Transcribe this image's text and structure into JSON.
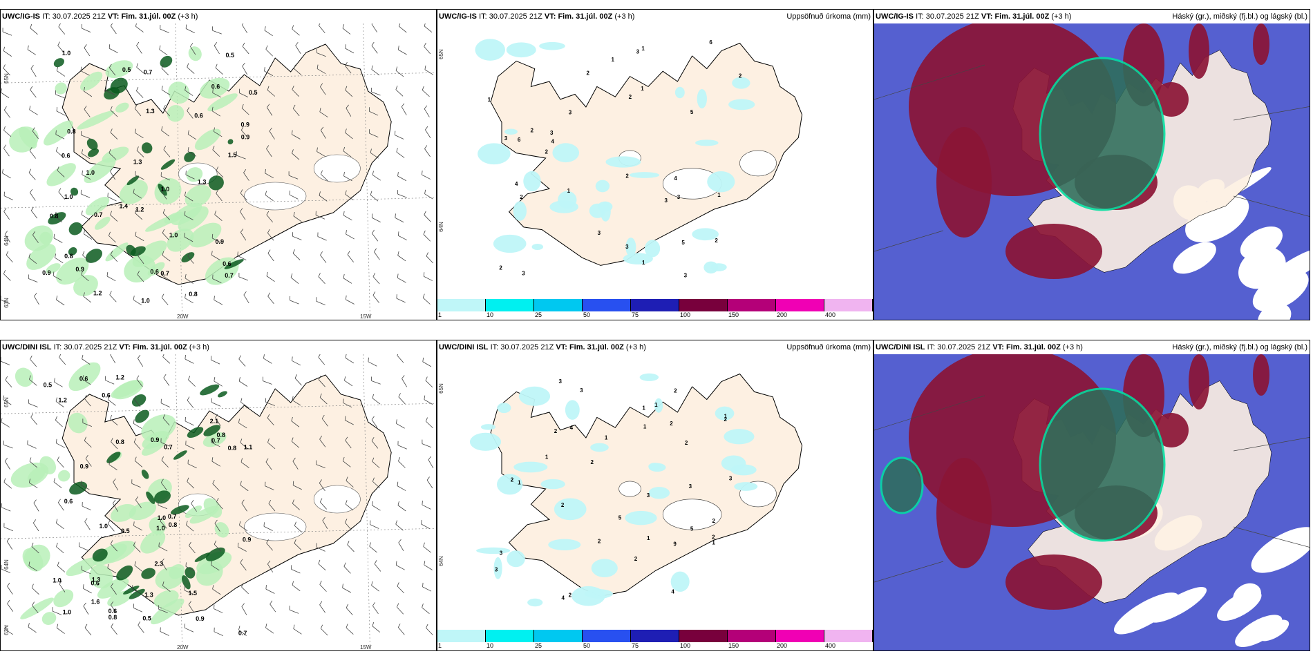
{
  "rows": [
    {
      "model": "UWC/IG-IS",
      "init_label": "IT:",
      "init_value": "30.07.2025 21Z",
      "valid_label": "VT:",
      "valid_value": "Fim. 31.júl. 00Z",
      "lead": "(+3 h)",
      "wind_panel": {
        "lon_labels": [
          "20W",
          "15W"
        ],
        "lat_labels": [
          "65N",
          "64N",
          "63N"
        ],
        "values": [
          "0.6",
          "0.7",
          "0.8",
          "1.3",
          "1.0",
          "0.9",
          "1.2",
          "0.5",
          "0.6",
          "0.7",
          "0.8",
          "1.0",
          "1.3",
          "0.8",
          "0.9",
          "1.0",
          "0.6",
          "0.5",
          "0.9",
          "0.7",
          "0.6",
          "1.0",
          "0.8",
          "0.9",
          "1.5",
          "1.0",
          "0.6",
          "1.3",
          "0.7",
          "0.5",
          "1.4",
          "1.2",
          "0.9",
          "1.0"
        ]
      },
      "precip_panel": {
        "title": "Uppsöfnuð úrkoma (mm)",
        "lat_labels": [
          "65N",
          "64N"
        ],
        "values": [
          "3",
          "2",
          "1",
          "4",
          "5",
          "3",
          "6",
          "2",
          "3",
          "1",
          "4",
          "2",
          "3",
          "5",
          "2",
          "3",
          "1",
          "6",
          "2",
          "3",
          "4",
          "2",
          "3",
          "1",
          "2",
          "3",
          "1",
          "2",
          "3",
          "3",
          "1",
          "1",
          "2"
        ]
      },
      "cloud_panel": {
        "title": "Háský (gr.), miðský (fj.bl.) og lágský (bl.)"
      }
    },
    {
      "model": "UWC/DINI ISL",
      "init_label": "IT:",
      "init_value": "30.07.2025 21Z",
      "valid_label": "VT:",
      "valid_value": "Fim. 31.júl. 00Z",
      "lead": "(+3 h)",
      "wind_panel": {
        "lon_labels": [
          "20W",
          "15W"
        ],
        "lat_labels": [
          "65N",
          "64N",
          "63N"
        ],
        "values": [
          "1.2",
          "1.0",
          "0.8",
          "0.9",
          "0.5",
          "0.7",
          "0.6",
          "1.1",
          "0.5",
          "1.3",
          "0.8",
          "0.9",
          "1.2",
          "0.7",
          "0.8",
          "0.6",
          "0.5",
          "0.9",
          "1.0",
          "0.8",
          "1.0",
          "0.6",
          "0.7",
          "2.1",
          "0.8",
          "1.5",
          "1.0",
          "0.9",
          "1.3",
          "0.6",
          "1.0",
          "2.3",
          "0.6",
          "1.6",
          "0.7"
        ]
      },
      "precip_panel": {
        "title": "Uppsöfnuð úrkoma (mm)",
        "lat_labels": [
          "65N",
          "64N"
        ],
        "values": [
          "5",
          "2",
          "1",
          "1",
          "2",
          "3",
          "1",
          "2",
          "1",
          "4",
          "2",
          "3",
          "2",
          "1",
          "3",
          "4",
          "2",
          "1",
          "3",
          "2",
          "2",
          "3",
          "5",
          "1",
          "2",
          "4",
          "3",
          "2",
          "1",
          "9",
          "2",
          "3",
          "2",
          "1",
          "2"
        ]
      },
      "cloud_panel": {
        "title": "Háský (gr.), miðský (fj.bl.) og lágský (bl.)"
      }
    }
  ],
  "colorbar": {
    "ticks": [
      "1",
      "10",
      "25",
      "50",
      "75",
      "100",
      "150",
      "200",
      "400"
    ],
    "colors": [
      "#bff6f8",
      "#00f0f0",
      "#00c8f0",
      "#2850f0",
      "#1e1eb4",
      "#78003c",
      "#b40078",
      "#f000b4",
      "#f0b4f0"
    ]
  },
  "palette": {
    "land": "#fdf0e2",
    "precip_green_light": "#b8f0b8",
    "precip_green_dark": "#0a5a1e",
    "precip_cyan": "#bff6f8",
    "cloud_high": "#8b1535",
    "cloud_mid": "#2e6e5a",
    "cloud_low": "#5560d0"
  }
}
